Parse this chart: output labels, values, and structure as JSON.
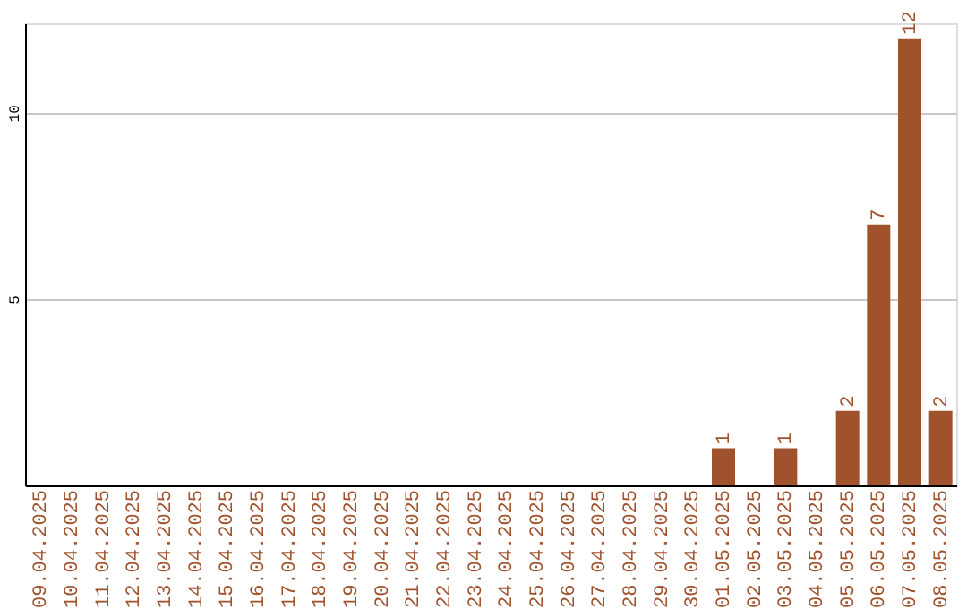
{
  "chart_data": {
    "type": "bar",
    "categories": [
      "09.04.2025",
      "10.04.2025",
      "11.04.2025",
      "12.04.2025",
      "13.04.2025",
      "14.04.2025",
      "15.04.2025",
      "16.04.2025",
      "17.04.2025",
      "18.04.2025",
      "19.04.2025",
      "20.04.2025",
      "21.04.2025",
      "22.04.2025",
      "23.04.2025",
      "24.04.2025",
      "25.04.2025",
      "26.04.2025",
      "27.04.2025",
      "28.04.2025",
      "29.04.2025",
      "30.04.2025",
      "01.05.2025",
      "02.05.2025",
      "03.05.2025",
      "04.05.2025",
      "05.05.2025",
      "06.05.2025",
      "07.05.2025",
      "08.05.2025"
    ],
    "values": [
      0,
      0,
      0,
      0,
      0,
      0,
      0,
      0,
      0,
      0,
      0,
      0,
      0,
      0,
      0,
      0,
      0,
      0,
      0,
      0,
      0,
      0,
      1,
      0,
      1,
      0,
      2,
      7,
      12,
      2
    ],
    "value_labels": [
      null,
      null,
      null,
      null,
      null,
      null,
      null,
      null,
      null,
      null,
      null,
      null,
      null,
      null,
      null,
      null,
      null,
      null,
      null,
      null,
      null,
      null,
      "1",
      null,
      "1",
      null,
      "2",
      "7",
      "12",
      "2"
    ],
    "color": "#a0522d",
    "ylim": [
      0,
      12.4
    ],
    "yticks": [
      5,
      10
    ],
    "grid": "y"
  }
}
